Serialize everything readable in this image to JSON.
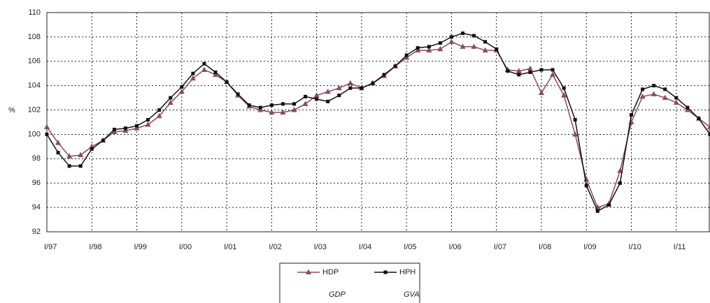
{
  "chart_data": {
    "type": "line",
    "categories": [
      "I/97",
      null,
      null,
      null,
      "I/98",
      null,
      null,
      null,
      "I/99",
      null,
      null,
      null,
      "I/00",
      null,
      null,
      null,
      "I/01",
      null,
      null,
      null,
      "I/02",
      null,
      null,
      null,
      "I/03",
      null,
      null,
      null,
      "I/04",
      null,
      null,
      null,
      "I/05",
      null,
      null,
      null,
      "I/06",
      null,
      null,
      null,
      "I/07",
      null,
      null,
      null,
      "I/08",
      null,
      null,
      null,
      "I/09",
      null,
      null,
      null,
      "I/10",
      null,
      null,
      null,
      "I/11",
      null,
      null,
      null
    ],
    "y_label": "%",
    "series": [
      {
        "name": "HDP",
        "color": "#8b4a5a",
        "marker": "triangle",
        "values": [
          100.6,
          99.3,
          98.2,
          98.3,
          99.0,
          99.5,
          100.2,
          100.3,
          100.5,
          100.8,
          101.5,
          102.6,
          103.5,
          104.6,
          105.3,
          104.9,
          104.3,
          103.2,
          102.3,
          102.0,
          101.8,
          101.8,
          102.0,
          102.5,
          103.2,
          103.5,
          103.8,
          104.2,
          103.8,
          104.2,
          104.8,
          105.6,
          106.3,
          106.9,
          106.9,
          107.0,
          107.6,
          107.2,
          107.2,
          106.9,
          106.9,
          105.3,
          105.2,
          105.4,
          103.4,
          104.9,
          103.2,
          100.0,
          96.3,
          94.0,
          94.3,
          97.0,
          101.0,
          103.1,
          103.3,
          103.0,
          102.6,
          102.0,
          101.3,
          100.6
        ]
      },
      {
        "name": "HPH",
        "color": "#111111",
        "marker": "square",
        "values": [
          100.0,
          98.5,
          97.4,
          97.4,
          98.8,
          99.5,
          100.4,
          100.5,
          100.7,
          101.2,
          102.0,
          103.0,
          103.9,
          105.0,
          105.8,
          105.1,
          104.3,
          103.3,
          102.4,
          102.2,
          102.4,
          102.5,
          102.5,
          103.1,
          102.9,
          102.7,
          103.2,
          103.8,
          103.8,
          104.2,
          104.9,
          105.6,
          106.5,
          107.1,
          107.2,
          107.5,
          108.0,
          108.3,
          108.1,
          107.6,
          107.0,
          105.2,
          104.9,
          105.1,
          105.3,
          105.3,
          103.8,
          101.2,
          95.8,
          93.7,
          94.2,
          96.0,
          101.6,
          103.7,
          104.0,
          103.7,
          103.0,
          102.2,
          101.3,
          100.0
        ]
      }
    ],
    "legend_notes": [
      "GDP",
      "GVA"
    ],
    "ylim": [
      92,
      110
    ],
    "yticks": [
      92,
      94,
      96,
      98,
      100,
      102,
      104,
      106,
      108,
      110
    ],
    "grid": true
  }
}
